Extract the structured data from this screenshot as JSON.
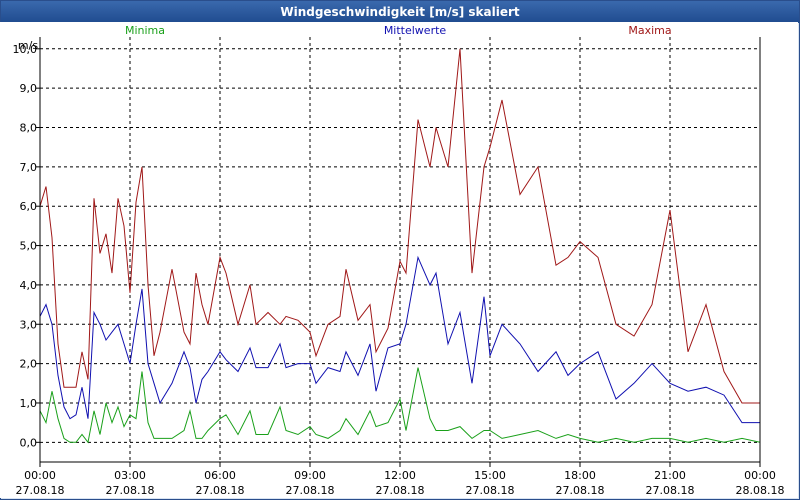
{
  "window": {
    "title": "Windgeschwindigkeit [m/s] skaliert"
  },
  "chart_data": {
    "type": "line",
    "title": "Windgeschwindigkeit [m/s] skaliert",
    "ylabel": "m/s",
    "xlabel": "",
    "ylim": [
      -0.5,
      10.3
    ],
    "xlim": [
      0,
      24
    ],
    "grid": true,
    "legend_placement": "top",
    "y_ticks": [
      "0,0",
      "1,0",
      "2,0",
      "3,0",
      "4,0",
      "5,0",
      "6,0",
      "7,0",
      "8,0",
      "9,0",
      "10,0"
    ],
    "x_ticks": [
      {
        "time": "00:00",
        "date": "27.08.18"
      },
      {
        "time": "03:00",
        "date": "27.08.18"
      },
      {
        "time": "06:00",
        "date": "27.08.18"
      },
      {
        "time": "09:00",
        "date": "27.08.18"
      },
      {
        "time": "12:00",
        "date": "27.08.18"
      },
      {
        "time": "15:00",
        "date": "27.08.18"
      },
      {
        "time": "18:00",
        "date": "27.08.18"
      },
      {
        "time": "21:00",
        "date": "27.08.18"
      },
      {
        "time": "00:00",
        "date": "28.08.18"
      }
    ],
    "series": [
      {
        "name": "Minima",
        "color": "#1aa01a",
        "x": [
          0,
          0.2,
          0.4,
          0.6,
          0.8,
          1.0,
          1.2,
          1.4,
          1.6,
          1.8,
          2.0,
          2.2,
          2.4,
          2.6,
          2.8,
          3.0,
          3.2,
          3.4,
          3.6,
          3.8,
          4.0,
          4.4,
          4.8,
          5.0,
          5.2,
          5.4,
          5.6,
          6.0,
          6.2,
          6.6,
          7.0,
          7.2,
          7.6,
          8.0,
          8.2,
          8.6,
          9.0,
          9.2,
          9.6,
          10.0,
          10.2,
          10.6,
          11.0,
          11.2,
          11.6,
          12.0,
          12.2,
          12.6,
          13.0,
          13.2,
          13.6,
          14.0,
          14.4,
          14.8,
          15.0,
          15.4,
          16.0,
          16.6,
          17.2,
          17.6,
          18.0,
          18.6,
          19.2,
          19.8,
          20.4,
          21.0,
          21.6,
          22.2,
          22.8,
          23.4,
          24.0
        ],
        "values": [
          0.8,
          0.5,
          1.3,
          0.6,
          0.1,
          0.0,
          0.0,
          0.2,
          0.0,
          0.8,
          0.2,
          1.0,
          0.5,
          0.9,
          0.4,
          0.7,
          0.6,
          1.8,
          0.5,
          0.1,
          0.1,
          0.1,
          0.3,
          0.8,
          0.1,
          0.1,
          0.3,
          0.6,
          0.7,
          0.2,
          0.8,
          0.2,
          0.2,
          0.9,
          0.3,
          0.2,
          0.4,
          0.2,
          0.1,
          0.3,
          0.6,
          0.2,
          0.8,
          0.4,
          0.5,
          1.1,
          0.3,
          1.9,
          0.6,
          0.3,
          0.3,
          0.4,
          0.1,
          0.3,
          0.3,
          0.1,
          0.2,
          0.3,
          0.1,
          0.2,
          0.1,
          0.0,
          0.1,
          0.0,
          0.1,
          0.1,
          0.0,
          0.1,
          0.0,
          0.1,
          0.0
        ]
      },
      {
        "name": "Mittelwerte",
        "color": "#1010b0",
        "x": [
          0,
          0.2,
          0.4,
          0.6,
          0.8,
          1.0,
          1.2,
          1.4,
          1.6,
          1.8,
          2.0,
          2.2,
          2.4,
          2.6,
          2.8,
          3.0,
          3.2,
          3.4,
          3.6,
          3.8,
          4.0,
          4.4,
          4.8,
          5.0,
          5.2,
          5.4,
          5.6,
          6.0,
          6.2,
          6.6,
          7.0,
          7.2,
          7.6,
          8.0,
          8.2,
          8.6,
          9.0,
          9.2,
          9.6,
          10.0,
          10.2,
          10.6,
          11.0,
          11.2,
          11.6,
          12.0,
          12.2,
          12.6,
          13.0,
          13.2,
          13.6,
          14.0,
          14.4,
          14.8,
          15.0,
          15.4,
          16.0,
          16.6,
          17.2,
          17.6,
          18.0,
          18.6,
          19.2,
          19.8,
          20.4,
          21.0,
          21.6,
          22.2,
          22.8,
          23.4,
          24.0
        ],
        "values": [
          3.2,
          3.5,
          3.0,
          1.7,
          0.9,
          0.6,
          0.7,
          1.4,
          0.6,
          3.3,
          3.0,
          2.6,
          2.8,
          3.0,
          2.5,
          2.0,
          3.0,
          3.9,
          2.0,
          1.5,
          1.0,
          1.5,
          2.3,
          1.9,
          1.0,
          1.6,
          1.8,
          2.3,
          2.1,
          1.8,
          2.4,
          1.9,
          1.9,
          2.5,
          1.9,
          2.0,
          2.0,
          1.5,
          1.9,
          1.8,
          2.3,
          1.7,
          2.5,
          1.3,
          2.4,
          2.5,
          3.0,
          4.7,
          4.0,
          4.3,
          2.5,
          3.3,
          1.5,
          3.7,
          2.2,
          3.0,
          2.5,
          1.8,
          2.3,
          1.7,
          2.0,
          2.3,
          1.1,
          1.5,
          2.0,
          1.5,
          1.3,
          1.4,
          1.2,
          0.5,
          0.5
        ]
      },
      {
        "name": "Maxima",
        "color": "#a01818",
        "x": [
          0,
          0.2,
          0.4,
          0.6,
          0.8,
          1.0,
          1.2,
          1.4,
          1.6,
          1.8,
          2.0,
          2.2,
          2.4,
          2.6,
          2.8,
          3.0,
          3.2,
          3.4,
          3.6,
          3.8,
          4.0,
          4.4,
          4.8,
          5.0,
          5.2,
          5.4,
          5.6,
          6.0,
          6.2,
          6.6,
          7.0,
          7.2,
          7.6,
          8.0,
          8.2,
          8.6,
          9.0,
          9.2,
          9.6,
          10.0,
          10.2,
          10.6,
          11.0,
          11.2,
          11.6,
          12.0,
          12.2,
          12.6,
          13.0,
          13.2,
          13.6,
          14.0,
          14.4,
          14.8,
          15.0,
          15.4,
          16.0,
          16.6,
          17.2,
          17.6,
          18.0,
          18.6,
          19.2,
          19.8,
          20.4,
          21.0,
          21.6,
          22.2,
          22.8,
          23.4,
          24.0
        ],
        "values": [
          6.0,
          6.5,
          5.2,
          2.5,
          1.4,
          1.4,
          1.4,
          2.3,
          1.6,
          6.2,
          4.8,
          5.3,
          4.3,
          6.2,
          5.5,
          3.8,
          6.1,
          7.0,
          4.0,
          2.2,
          2.8,
          4.4,
          2.8,
          2.5,
          4.3,
          3.5,
          3.0,
          4.7,
          4.3,
          3.0,
          4.0,
          3.0,
          3.3,
          3.0,
          3.2,
          3.1,
          2.8,
          2.2,
          3.0,
          3.2,
          4.4,
          3.1,
          3.5,
          2.3,
          2.9,
          4.6,
          4.3,
          8.2,
          7.0,
          8.0,
          7.0,
          10.0,
          4.3,
          7.0,
          7.5,
          8.7,
          6.3,
          7.0,
          4.5,
          4.7,
          5.1,
          4.7,
          3.0,
          2.7,
          3.5,
          5.9,
          2.3,
          3.5,
          1.8,
          1.0,
          1.0
        ]
      }
    ]
  }
}
